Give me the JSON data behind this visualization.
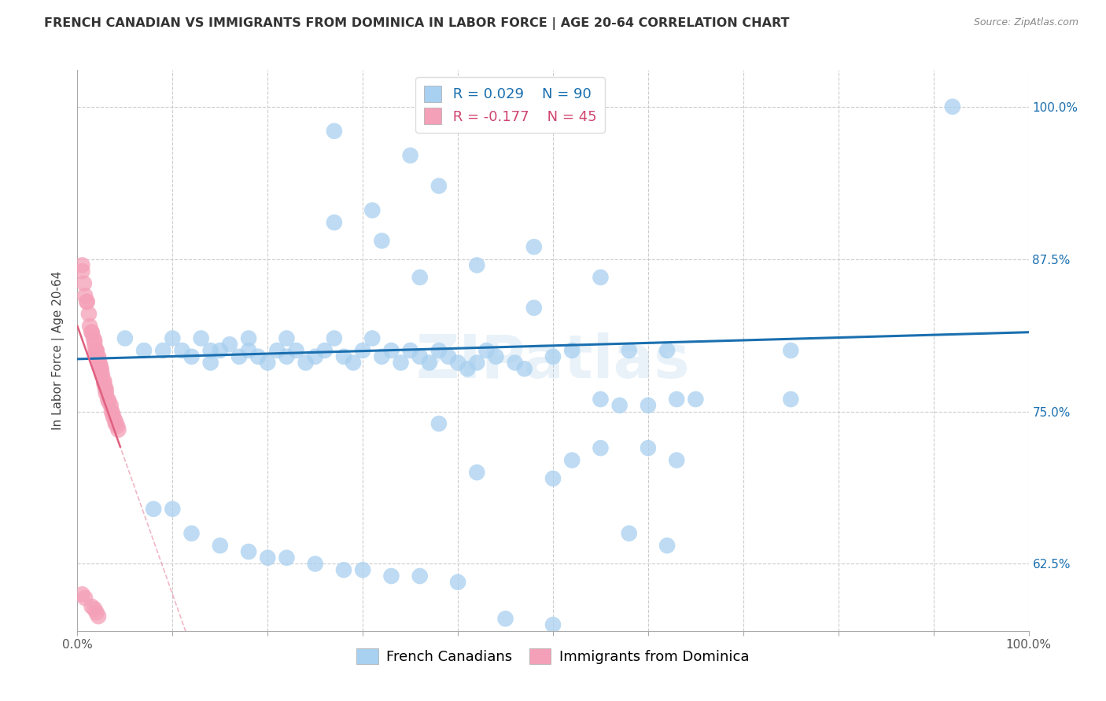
{
  "title": "FRENCH CANADIAN VS IMMIGRANTS FROM DOMINICA IN LABOR FORCE | AGE 20-64 CORRELATION CHART",
  "source": "Source: ZipAtlas.com",
  "ylabel": "In Labor Force | Age 20-64",
  "xlim": [
    0.0,
    1.0
  ],
  "ylim": [
    0.57,
    1.03
  ],
  "yticks": [
    0.625,
    0.75,
    0.875,
    1.0
  ],
  "ytick_labels": [
    "62.5%",
    "75.0%",
    "87.5%",
    "100.0%"
  ],
  "xtick_labels": [
    "0.0%",
    "",
    "",
    "",
    "",
    "",
    "",
    "",
    "",
    "",
    "100.0%"
  ],
  "blue_color": "#a8d0f0",
  "pink_color": "#f4a0b8",
  "blue_line_color": "#1a6faf",
  "pink_line_color": "#e06080",
  "legend_R1": "R = 0.029",
  "legend_N1": "N = 90",
  "legend_R2": "R = -0.177",
  "legend_N2": "N = 45",
  "legend_label1": "French Canadians",
  "legend_label2": "Immigrants from Dominica",
  "blue_x": [
    0.27,
    0.35,
    0.38,
    0.31,
    0.27,
    0.32,
    0.48,
    0.42,
    0.36,
    0.55,
    0.48,
    0.58,
    0.62,
    0.75,
    0.92,
    0.05,
    0.07,
    0.09,
    0.1,
    0.11,
    0.12,
    0.13,
    0.14,
    0.14,
    0.15,
    0.16,
    0.17,
    0.18,
    0.18,
    0.19,
    0.2,
    0.21,
    0.22,
    0.22,
    0.23,
    0.24,
    0.25,
    0.26,
    0.27,
    0.28,
    0.29,
    0.3,
    0.31,
    0.32,
    0.33,
    0.34,
    0.35,
    0.36,
    0.37,
    0.38,
    0.39,
    0.4,
    0.41,
    0.42,
    0.43,
    0.44,
    0.46,
    0.47,
    0.5,
    0.52,
    0.55,
    0.57,
    0.6,
    0.63,
    0.55,
    0.6,
    0.63,
    0.38,
    0.42,
    0.5,
    0.52,
    0.58,
    0.62,
    0.65,
    0.75,
    0.08,
    0.1,
    0.12,
    0.15,
    0.18,
    0.2,
    0.22,
    0.25,
    0.28,
    0.3,
    0.33,
    0.36,
    0.4,
    0.45,
    0.5
  ],
  "blue_y": [
    0.98,
    0.96,
    0.935,
    0.915,
    0.905,
    0.89,
    0.885,
    0.87,
    0.86,
    0.86,
    0.835,
    0.8,
    0.8,
    0.8,
    1.0,
    0.81,
    0.8,
    0.8,
    0.81,
    0.8,
    0.795,
    0.81,
    0.8,
    0.79,
    0.8,
    0.805,
    0.795,
    0.8,
    0.81,
    0.795,
    0.79,
    0.8,
    0.81,
    0.795,
    0.8,
    0.79,
    0.795,
    0.8,
    0.81,
    0.795,
    0.79,
    0.8,
    0.81,
    0.795,
    0.8,
    0.79,
    0.8,
    0.795,
    0.79,
    0.8,
    0.795,
    0.79,
    0.785,
    0.79,
    0.8,
    0.795,
    0.79,
    0.785,
    0.795,
    0.8,
    0.76,
    0.755,
    0.755,
    0.76,
    0.72,
    0.72,
    0.71,
    0.74,
    0.7,
    0.695,
    0.71,
    0.65,
    0.64,
    0.76,
    0.76,
    0.67,
    0.67,
    0.65,
    0.64,
    0.635,
    0.63,
    0.63,
    0.625,
    0.62,
    0.62,
    0.615,
    0.615,
    0.61,
    0.58,
    0.575
  ],
  "pink_x": [
    0.005,
    0.005,
    0.007,
    0.008,
    0.01,
    0.01,
    0.012,
    0.013,
    0.015,
    0.015,
    0.017,
    0.018,
    0.018,
    0.019,
    0.02,
    0.02,
    0.02,
    0.022,
    0.022,
    0.023,
    0.024,
    0.025,
    0.025,
    0.026,
    0.028,
    0.028,
    0.029,
    0.03,
    0.03,
    0.032,
    0.033,
    0.035,
    0.036,
    0.037,
    0.038,
    0.04,
    0.04,
    0.042,
    0.043,
    0.015,
    0.018,
    0.02,
    0.022,
    0.005,
    0.008
  ],
  "pink_y": [
    0.87,
    0.865,
    0.855,
    0.845,
    0.84,
    0.84,
    0.83,
    0.82,
    0.815,
    0.815,
    0.81,
    0.808,
    0.805,
    0.8,
    0.8,
    0.8,
    0.798,
    0.795,
    0.793,
    0.79,
    0.788,
    0.785,
    0.783,
    0.78,
    0.775,
    0.773,
    0.77,
    0.768,
    0.765,
    0.76,
    0.758,
    0.755,
    0.75,
    0.748,
    0.745,
    0.742,
    0.74,
    0.738,
    0.735,
    0.59,
    0.588,
    0.585,
    0.582,
    0.6,
    0.597
  ],
  "watermark": "ZIPatlas",
  "title_fontsize": 11.5,
  "axis_label_fontsize": 11,
  "tick_fontsize": 11,
  "legend_fontsize": 13
}
